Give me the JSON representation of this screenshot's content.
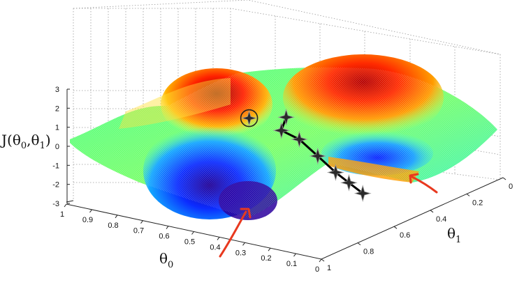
{
  "chart_data": {
    "type": "surface",
    "zlabel": "J(θ0,θ1)",
    "xlabel": "θ0",
    "ylabel": "θ1",
    "z_ticks": [
      "3",
      "2",
      "1",
      "0",
      "-1",
      "-2",
      "-3"
    ],
    "z_tick_values": [
      3,
      2,
      1,
      0,
      -1,
      -2,
      -3
    ],
    "theta0_ticks": [
      "1",
      "0.9",
      "0.8",
      "0.7",
      "0.6",
      "0.5",
      "0.4",
      "0.3",
      "0.2",
      "0.1",
      "0"
    ],
    "theta0_tick_values": [
      1,
      0.9,
      0.8,
      0.7,
      0.6,
      0.5,
      0.4,
      0.3,
      0.2,
      0.1,
      0
    ],
    "theta1_ticks": [
      "0",
      "0.2",
      "0.4",
      "0.6",
      "0.8",
      "1"
    ],
    "theta1_tick_values": [
      0,
      0.2,
      0.4,
      0.6,
      0.8,
      1
    ],
    "xlim": [
      0,
      1
    ],
    "ylim": [
      0,
      1
    ],
    "zlim": [
      -3,
      3
    ],
    "grid": true,
    "colormap": "jet",
    "descent_path": {
      "color": "#000000",
      "marker": "star",
      "points": [
        {
          "theta0": 0.35,
          "theta1": 0.32,
          "J": 2.1
        },
        {
          "theta0": 0.37,
          "theta1": 0.36,
          "J": 1.5
        },
        {
          "theta0": 0.33,
          "theta1": 0.43,
          "J": 1.1
        },
        {
          "theta0": 0.29,
          "theta1": 0.51,
          "J": 0.3
        },
        {
          "theta0": 0.25,
          "theta1": 0.58,
          "J": -0.5
        },
        {
          "theta0": 0.22,
          "theta1": 0.63,
          "J": -1.0
        },
        {
          "theta0": 0.19,
          "theta1": 0.69,
          "J": -1.5
        }
      ],
      "start_circle": {
        "theta0": 0.44,
        "theta1": 0.22,
        "J": 2.0
      }
    },
    "arrow_color": "#e8391f"
  }
}
